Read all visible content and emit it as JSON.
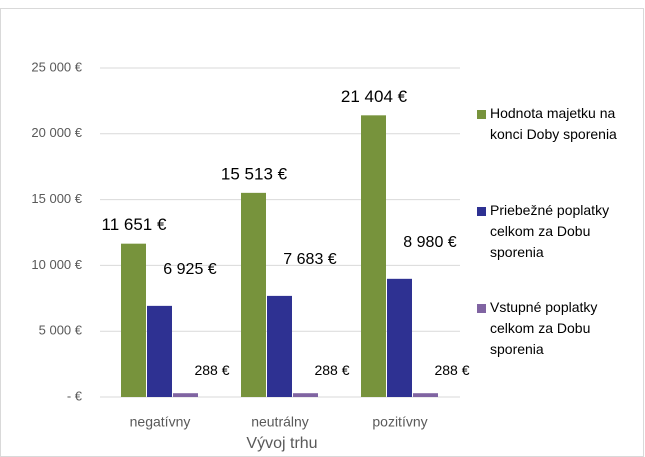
{
  "chart_data": {
    "type": "bar",
    "categories": [
      "negatívny",
      "neutrálny",
      "pozitívny"
    ],
    "x_label": "Vývoj trhu",
    "series": [
      {
        "name": "Hodnota majetku na konci Doby sporenia",
        "color": "#77933c",
        "values": [
          11651,
          15513,
          21404
        ],
        "value_labels": [
          "11 651 €",
          "15 513 €",
          "21 404 €"
        ]
      },
      {
        "name": "Priebežné poplatky celkom za Dobu sporenia",
        "color": "#2e3192",
        "values": [
          6925,
          7683,
          8980
        ],
        "value_labels": [
          "6 925 €",
          "7 683 €",
          "8 980 €"
        ]
      },
      {
        "name": "Vstupné poplatky celkom za Dobu sporenia",
        "color": "#8064a2",
        "values": [
          288,
          288,
          288
        ],
        "value_labels": [
          "288 €",
          "288 €",
          "288 €"
        ]
      }
    ],
    "ylim": [
      0,
      25000
    ],
    "yticks": [
      {
        "value": 0,
        "label": "- €"
      },
      {
        "value": 5000,
        "label": "5 000 €"
      },
      {
        "value": 10000,
        "label": "10 000 €"
      },
      {
        "value": 15000,
        "label": "15 000 €"
      },
      {
        "value": 20000,
        "label": "20 000 €"
      },
      {
        "value": 25000,
        "label": "25 000 €"
      }
    ],
    "grid": true,
    "legend": "right"
  }
}
